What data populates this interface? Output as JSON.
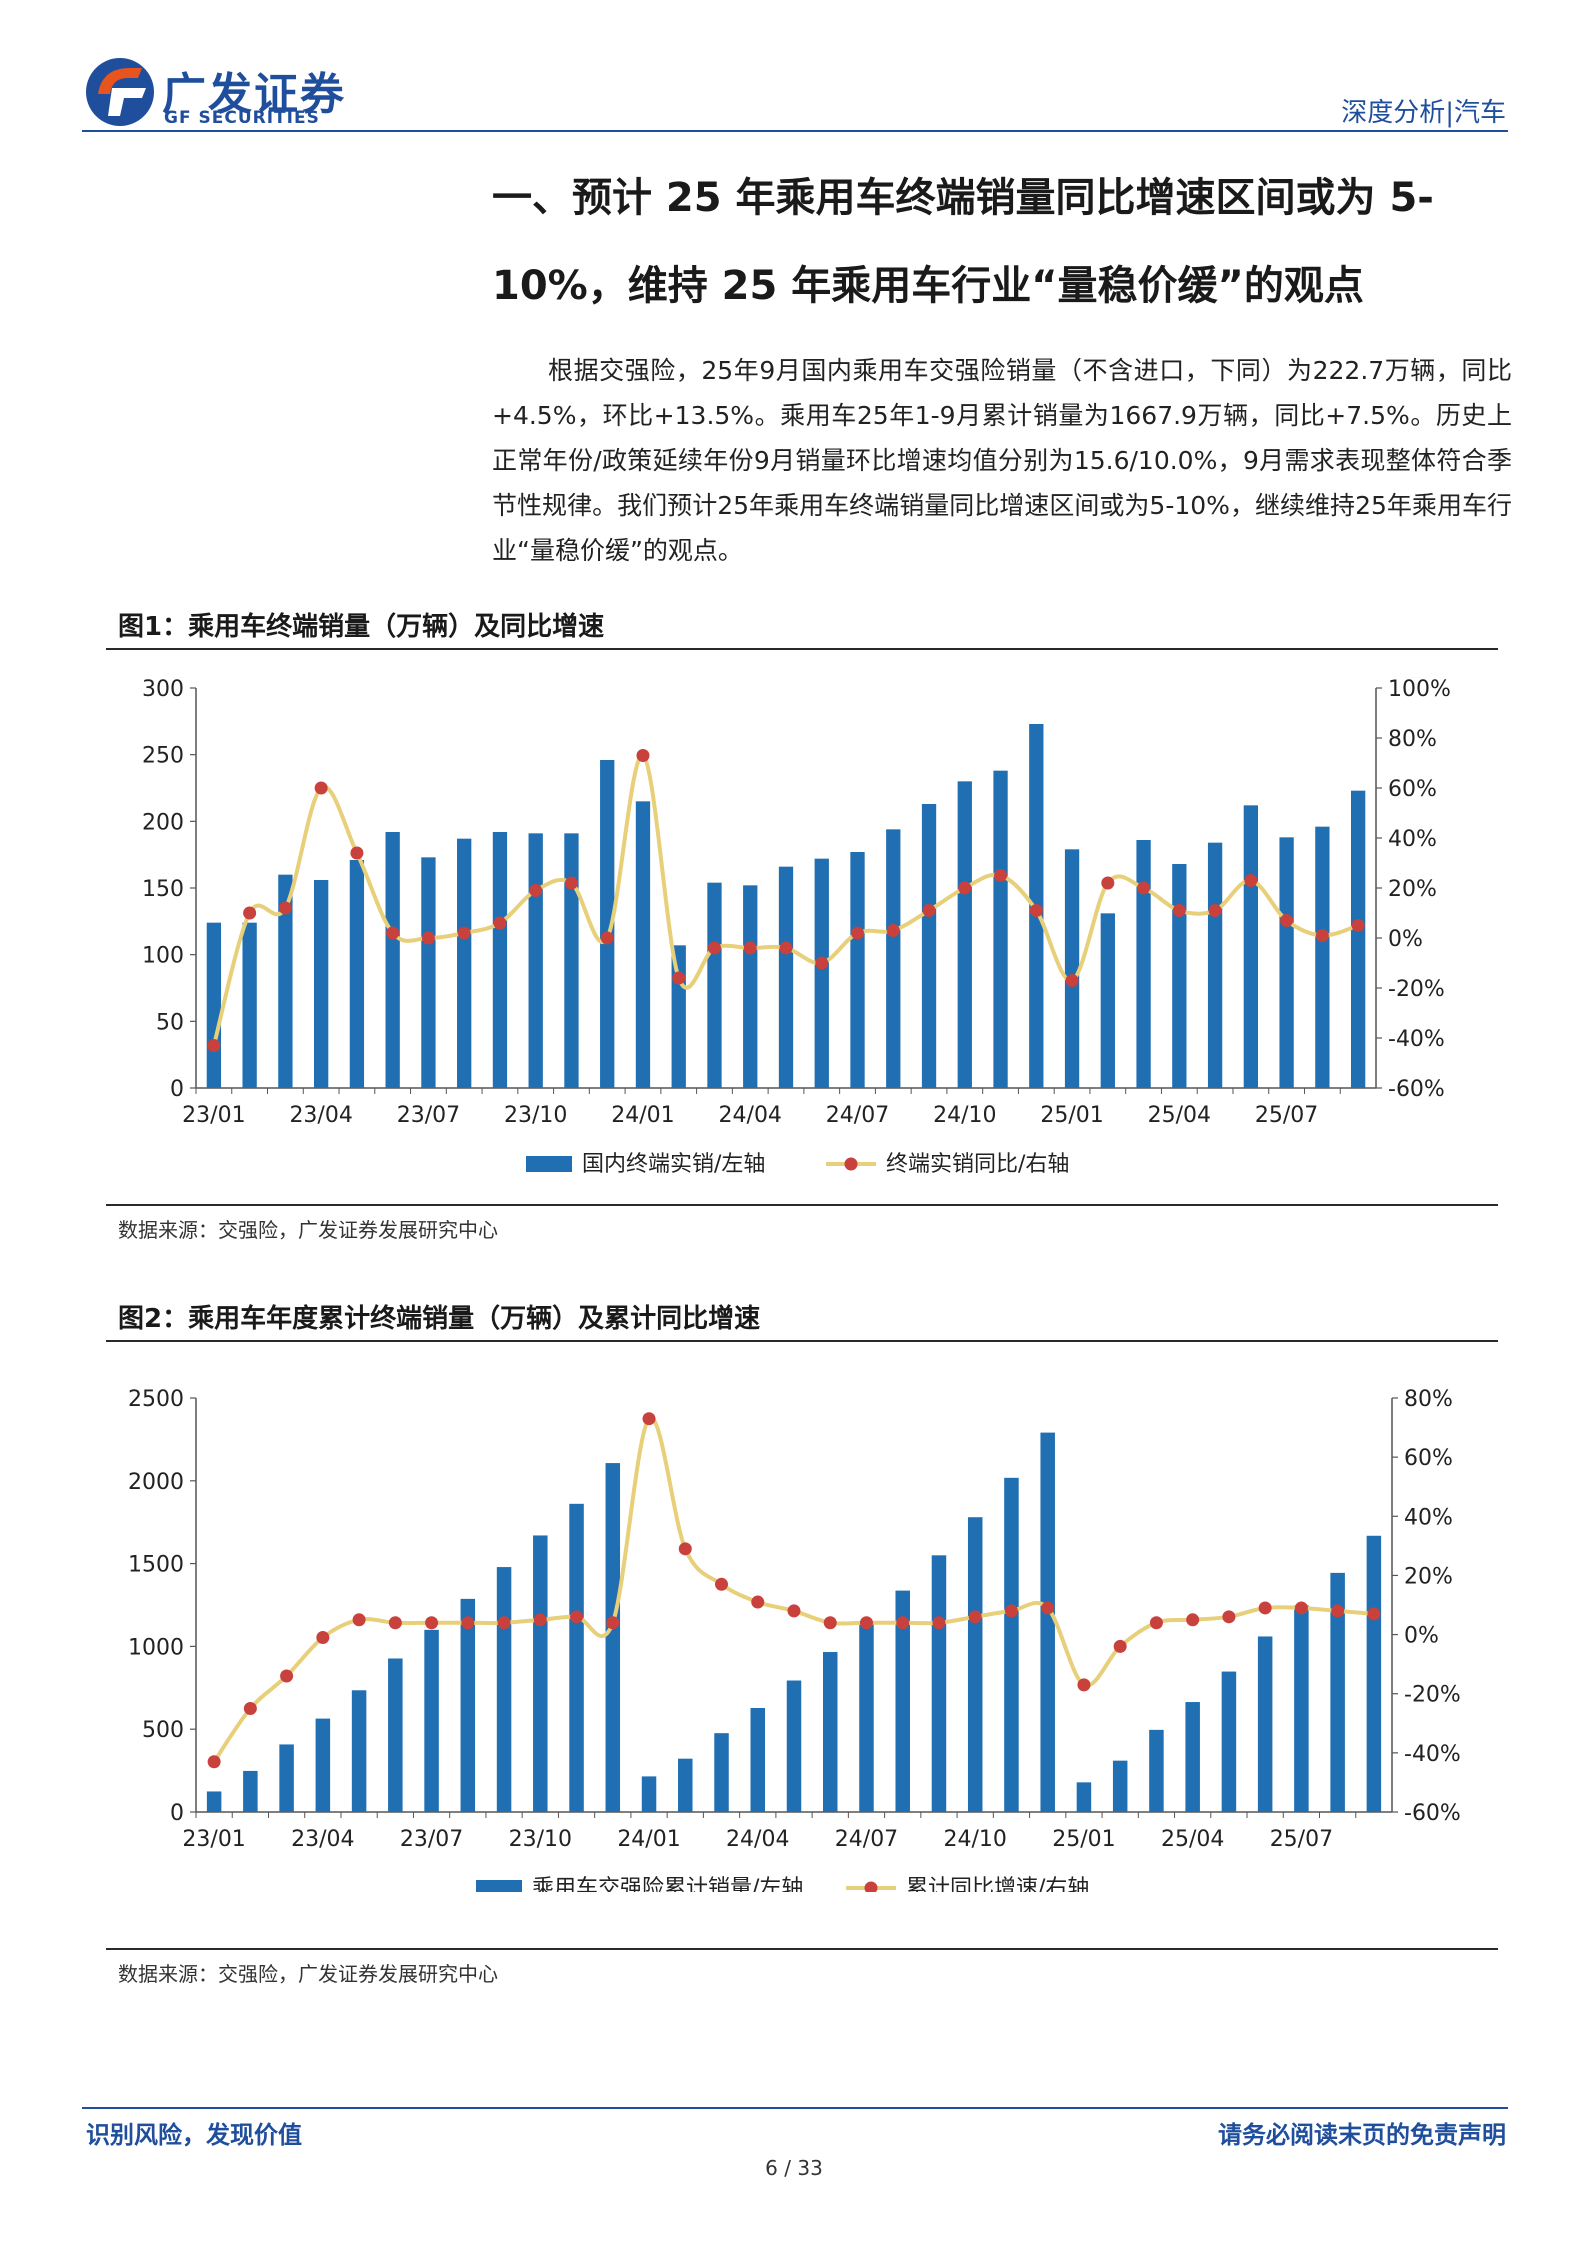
{
  "header": {
    "brand_cn": "广发证券",
    "brand_en": "GF SECURITIES",
    "report_type": "深度分析|汽车"
  },
  "section": {
    "title_line1": "一、预计 25 年乘用车终端销量同比增速区间或为 5-",
    "title_line2": "10%，维持 25 年乘用车行业“量稳价缓”的观点",
    "paragraph": "根据交强险，25年9月国内乘用车交强险销量（不含进口，下同）为222.7万辆，同比+4.5%，环比+13.5%。乘用车25年1-9月累计销量为1667.9万辆，同比+7.5%。历史上正常年份/政策延续年份9月销量环比增速均值分别为15.6/10.0%，9月需求表现整体符合季节性规律。我们预计25年乘用车终端销量同比增速区间或为5-10%，继续维持25年乘用车行业“量稳价缓”的观点。"
  },
  "figure1": {
    "title": "图1：乘用车终端销量（万辆）及同比增速",
    "source": "数据来源：交强险，广发证券发展研究中心"
  },
  "figure2": {
    "title": "图2：乘用车年度累计终端销量（万辆）及累计同比增速",
    "source": "数据来源：交强险，广发证券发展研究中心"
  },
  "colors": {
    "brand": "#1f4e9c",
    "bar": "#1f6fb2",
    "line": "#e8cf7a",
    "marker": "#c8413d"
  },
  "chart_data": [
    {
      "type": "bar",
      "categories": [
        "23/01",
        "23/02",
        "23/03",
        "23/04",
        "23/05",
        "23/06",
        "23/07",
        "23/08",
        "23/09",
        "23/10",
        "23/11",
        "23/12",
        "24/01",
        "24/02",
        "24/03",
        "24/04",
        "24/05",
        "24/06",
        "24/07",
        "24/08",
        "24/09",
        "24/10",
        "24/11",
        "24/12",
        "25/01",
        "25/02",
        "25/03",
        "25/04",
        "25/05",
        "25/06",
        "25/07",
        "25/08",
        "25/09"
      ],
      "tick_labels": [
        "23/01",
        "23/04",
        "23/07",
        "23/10",
        "24/01",
        "24/04",
        "24/07",
        "24/10",
        "25/01",
        "25/04",
        "25/07"
      ],
      "series": [
        {
          "name": "国内终端实销/左轴",
          "type": "bar",
          "axis": "left",
          "values": [
            124,
            124,
            160,
            156,
            171,
            192,
            173,
            187,
            192,
            191,
            191,
            246,
            215,
            107,
            154,
            152,
            166,
            172,
            177,
            194,
            213,
            230,
            238,
            273,
            179,
            131,
            186,
            168,
            184,
            212,
            188,
            196,
            223
          ]
        },
        {
          "name": "终端实销同比/右轴",
          "type": "line",
          "axis": "right",
          "values": [
            -43,
            10,
            12,
            60,
            34,
            2,
            0,
            2,
            6,
            19,
            22,
            0,
            73,
            -16,
            -4,
            -4,
            -4,
            -10,
            2,
            3,
            11,
            20,
            25,
            11,
            -17,
            22,
            20,
            11,
            11,
            23,
            7,
            1,
            5
          ]
        }
      ],
      "ylim_left": [
        0,
        300
      ],
      "yticks_left": [
        "0",
        "50",
        "100",
        "150",
        "200",
        "250",
        "300"
      ],
      "ylim_right": [
        -60,
        100
      ],
      "yticks_right": [
        "-60%",
        "-40%",
        "-20%",
        "0%",
        "20%",
        "40%",
        "60%",
        "80%",
        "100%"
      ],
      "legend": "bottom"
    },
    {
      "type": "bar",
      "categories": [
        "23/01",
        "23/02",
        "23/03",
        "23/04",
        "23/05",
        "23/06",
        "23/07",
        "23/08",
        "23/09",
        "23/10",
        "23/11",
        "23/12",
        "24/01",
        "24/02",
        "24/03",
        "24/04",
        "24/05",
        "24/06",
        "24/07",
        "24/08",
        "24/09",
        "24/10",
        "24/11",
        "24/12",
        "25/01",
        "25/02",
        "25/03",
        "25/04",
        "25/05",
        "25/06",
        "25/07",
        "25/08",
        "25/09"
      ],
      "tick_labels": [
        "23/01",
        "23/04",
        "23/07",
        "23/10",
        "24/01",
        "24/04",
        "24/07",
        "24/10",
        "25/01",
        "25/04",
        "25/07"
      ],
      "series": [
        {
          "name": "乘用车交强险累计销量/左轴",
          "type": "bar",
          "axis": "left",
          "values": [
            124,
            248,
            408,
            564,
            735,
            927,
            1100,
            1287,
            1479,
            1670,
            1861,
            2107,
            215,
            322,
            476,
            628,
            794,
            966,
            1143,
            1337,
            1550,
            1780,
            2018,
            2291,
            179,
            310,
            496,
            664,
            848,
            1060,
            1248,
            1444,
            1668
          ]
        },
        {
          "name": "累计同比增速/右轴",
          "type": "line",
          "axis": "right",
          "values": [
            -43,
            -25,
            -14,
            -1,
            5,
            4,
            4,
            4,
            4,
            5,
            6,
            4,
            73,
            29,
            17,
            11,
            8,
            4,
            4,
            4,
            4,
            6,
            8,
            9,
            -17,
            -4,
            4,
            5,
            6,
            9,
            9,
            8,
            7
          ]
        }
      ],
      "ylim_left": [
        0,
        2500
      ],
      "yticks_left": [
        "0",
        "500",
        "1000",
        "1500",
        "2000",
        "2500"
      ],
      "ylim_right": [
        -60,
        80
      ],
      "yticks_right": [
        "-60%",
        "-40%",
        "-20%",
        "0%",
        "20%",
        "40%",
        "60%",
        "80%"
      ],
      "legend": "bottom"
    }
  ],
  "footer": {
    "left": "识别风险，发现价值",
    "right": "请务必阅读末页的免责声明",
    "page": "6 / 33"
  }
}
